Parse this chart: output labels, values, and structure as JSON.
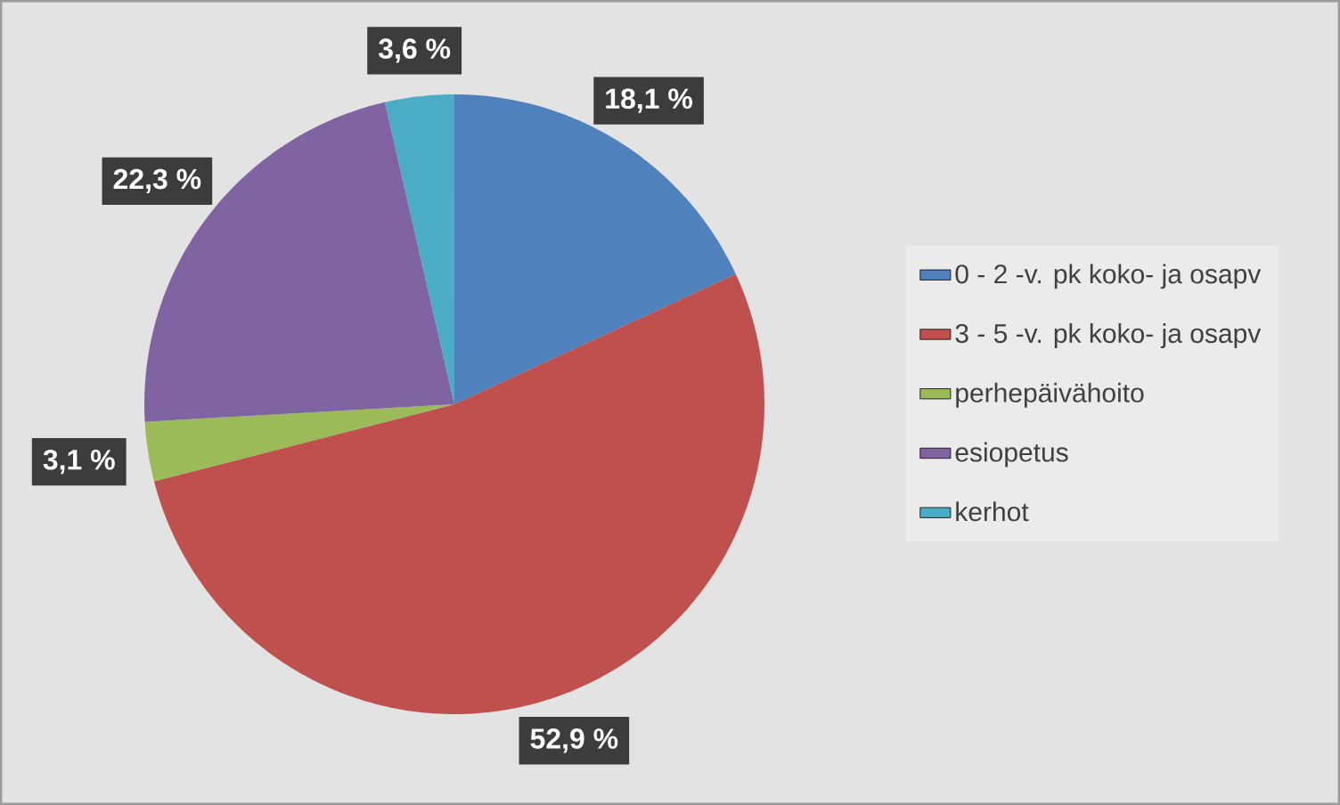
{
  "chart_data": {
    "type": "pie",
    "categories": [
      "0 - 2 -v. pk koko- ja osapv",
      "3 - 5 -v. pk koko- ja osapv",
      "perhepäivähoito",
      "esiopetus",
      "kerhot"
    ],
    "values": [
      18.1,
      52.9,
      3.1,
      22.3,
      3.6
    ],
    "colors": [
      "#4f81bd",
      "#c0504d",
      "#9bbb59",
      "#8064a2",
      "#4bacc6"
    ],
    "value_labels": [
      "18,1 %",
      "52,9 %",
      "3,1 %",
      "22,3 %",
      "3,6 %"
    ],
    "legend": "right"
  }
}
